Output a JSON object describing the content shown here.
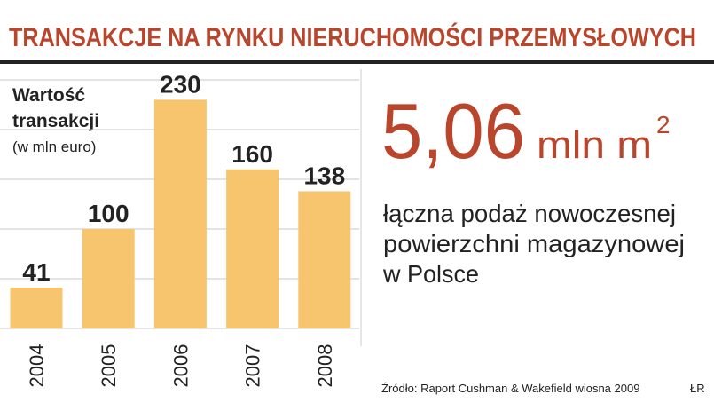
{
  "chart_data": {
    "type": "bar",
    "title": "TRANSAKCJE NA RYNKU NIERUCHOMOŚCI PRZEMYSŁOWYCH",
    "y_label": [
      "Wartość",
      "transakcji",
      "(w mln euro)"
    ],
    "categories": [
      "2004",
      "2005",
      "2006",
      "2007",
      "2008"
    ],
    "values": [
      41,
      100,
      230,
      160,
      138
    ],
    "color": "#f7c56e",
    "ylim": [
      0,
      250
    ],
    "yticks": [
      0,
      50,
      100,
      150,
      200,
      250
    ],
    "grid": true
  },
  "highlight": {
    "number": "5,06",
    "unit": "mln m",
    "superscript": "2",
    "description": [
      "łączna podaż nowoczesnej",
      "powierzchni magazynowej",
      "w Polsce"
    ]
  },
  "source": "Źródło: Raport Cushman & Wakefield wiosna 2009",
  "author": "ŁR"
}
